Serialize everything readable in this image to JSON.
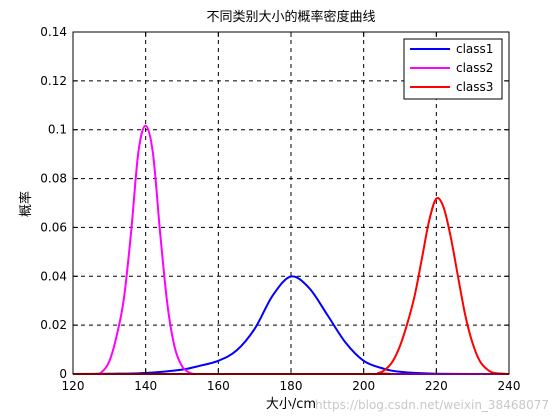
{
  "chart_data": {
    "type": "line",
    "title": "不同类别大小的概率密度曲线",
    "xlabel": "大小/cm",
    "ylabel": "概率",
    "xlim": [
      120,
      240
    ],
    "ylim": [
      0,
      0.14
    ],
    "xticks": [
      "120",
      "140",
      "160",
      "180",
      "200",
      "220",
      "240"
    ],
    "yticks": [
      "0",
      "0.02",
      "0.04",
      "0.06",
      "0.08",
      "0.1",
      "0.12",
      "0.14"
    ],
    "grid": "dashed",
    "legend_position": "top-right",
    "series": [
      {
        "name": "class1",
        "color": "#0000ff",
        "x": [
          120,
          130,
          140,
          150,
          155,
          160,
          165,
          170,
          175,
          180,
          185,
          190,
          195,
          200,
          205,
          210,
          220,
          240
        ],
        "y": [
          0.0,
          0.0001,
          0.0004,
          0.0018,
          0.0034,
          0.0054,
          0.0096,
          0.0185,
          0.0322,
          0.0399,
          0.0352,
          0.0242,
          0.0129,
          0.0054,
          0.0024,
          0.0009,
          0.0001,
          0.0
        ]
      },
      {
        "name": "class2",
        "color": "#ff00ff",
        "x": [
          120,
          126,
          128,
          130,
          132,
          134,
          136,
          138,
          140,
          142,
          144,
          146,
          148,
          150,
          152,
          154,
          160,
          240
        ],
        "y": [
          0.0,
          0.0,
          0.0009,
          0.0052,
          0.0155,
          0.0308,
          0.0582,
          0.0909,
          0.1016,
          0.0904,
          0.0575,
          0.0283,
          0.0109,
          0.0032,
          0.0006,
          0.0,
          0.0,
          0.0
        ]
      },
      {
        "name": "class3",
        "color": "#ff0000",
        "x": [
          120,
          200,
          204,
          206,
          208,
          210,
          212,
          214,
          216,
          218,
          220,
          222,
          224,
          226,
          228,
          230,
          232,
          234,
          236,
          240
        ],
        "y": [
          0.0,
          0.0,
          0.0004,
          0.0019,
          0.0052,
          0.0115,
          0.0206,
          0.0318,
          0.047,
          0.0626,
          0.0718,
          0.0682,
          0.0558,
          0.0396,
          0.0238,
          0.0125,
          0.0052,
          0.0019,
          0.0004,
          0.0
        ]
      }
    ]
  },
  "watermark": "https://blog.csdn.net/weixin_38468077"
}
